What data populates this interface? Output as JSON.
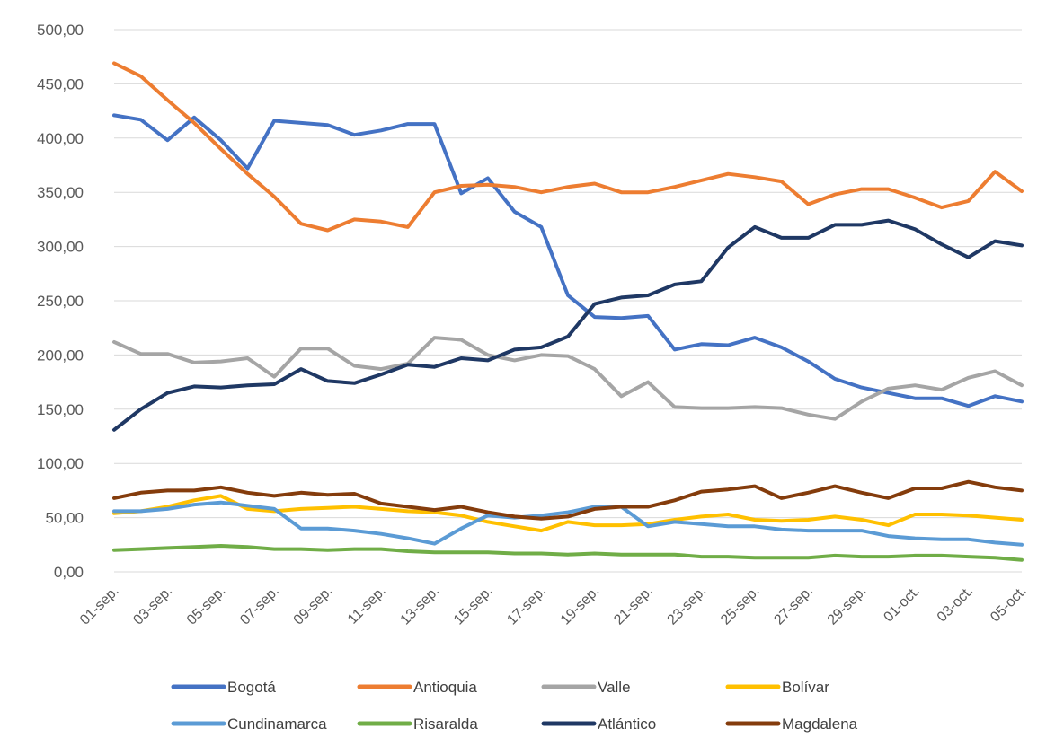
{
  "chart_data": {
    "type": "line",
    "title": "",
    "xlabel": "",
    "ylabel": "",
    "ylim": [
      0,
      500
    ],
    "y_ticks": [
      "0,00",
      "50,00",
      "100,00",
      "150,00",
      "200,00",
      "250,00",
      "300,00",
      "350,00",
      "400,00",
      "450,00",
      "500,00"
    ],
    "grid": "horizontal",
    "legend_position": "bottom",
    "x_tick_labels": [
      "01-sep.",
      "03-sep.",
      "05-sep.",
      "07-sep.",
      "09-sep.",
      "11-sep.",
      "13-sep.",
      "15-sep.",
      "17-sep.",
      "19-sep.",
      "21-sep.",
      "23-sep.",
      "25-sep.",
      "27-sep.",
      "29-sep.",
      "01-oct.",
      "03-oct.",
      "05-oct."
    ],
    "categories": [
      "01-sep.",
      "02-sep.",
      "03-sep.",
      "04-sep.",
      "05-sep.",
      "06-sep.",
      "07-sep.",
      "08-sep.",
      "09-sep.",
      "10-sep.",
      "11-sep.",
      "12-sep.",
      "13-sep.",
      "14-sep.",
      "15-sep.",
      "16-sep.",
      "17-sep.",
      "18-sep.",
      "19-sep.",
      "20-sep.",
      "21-sep.",
      "22-sep.",
      "23-sep.",
      "24-sep.",
      "25-sep.",
      "26-sep.",
      "27-sep.",
      "28-sep.",
      "29-sep.",
      "30-sep.",
      "01-oct.",
      "02-oct.",
      "03-oct.",
      "04-oct.",
      "05-oct."
    ],
    "series": [
      {
        "name": "Bogotá",
        "color": "#4472c4",
        "values": [
          421,
          417,
          398,
          419,
          398,
          372,
          416,
          414,
          412,
          403,
          407,
          413,
          413,
          349,
          363,
          332,
          318,
          255,
          235,
          234,
          236,
          205,
          210,
          209,
          216,
          207,
          194,
          178,
          170,
          165,
          160,
          160,
          153,
          162,
          157
        ]
      },
      {
        "name": "Antioquia",
        "color": "#ed7d31",
        "values": [
          469,
          457,
          435,
          414,
          390,
          367,
          346,
          321,
          315,
          325,
          323,
          318,
          350,
          356,
          357,
          355,
          350,
          355,
          358,
          350,
          350,
          355,
          361,
          367,
          364,
          360,
          339,
          348,
          353,
          353,
          345,
          336,
          342,
          369,
          351
        ]
      },
      {
        "name": "Valle",
        "color": "#a5a5a5",
        "values": [
          212,
          201,
          201,
          193,
          194,
          197,
          180,
          206,
          206,
          190,
          187,
          192,
          216,
          214,
          200,
          195,
          200,
          199,
          187,
          162,
          175,
          152,
          151,
          151,
          152,
          151,
          145,
          141,
          157,
          169,
          172,
          168,
          179,
          185,
          172
        ]
      },
      {
        "name": "Bolívar",
        "color": "#ffc000",
        "values": [
          54,
          56,
          60,
          66,
          70,
          58,
          56,
          58,
          59,
          60,
          58,
          56,
          55,
          52,
          46,
          42,
          38,
          46,
          43,
          43,
          44,
          48,
          51,
          53,
          48,
          47,
          48,
          51,
          48,
          43,
          53,
          53,
          52,
          50,
          48
        ]
      },
      {
        "name": "Cundinamarca",
        "color": "#5b9bd5",
        "values": [
          56,
          56,
          58,
          62,
          64,
          61,
          58,
          40,
          40,
          38,
          35,
          31,
          26,
          40,
          52,
          50,
          52,
          55,
          60,
          60,
          42,
          46,
          44,
          42,
          42,
          39,
          38,
          38,
          38,
          33,
          31,
          30,
          30,
          27,
          25
        ]
      },
      {
        "name": "Risaralda",
        "color": "#70ad47",
        "values": [
          20,
          21,
          22,
          23,
          24,
          23,
          21,
          21,
          20,
          21,
          21,
          19,
          18,
          18,
          18,
          17,
          17,
          16,
          17,
          16,
          16,
          16,
          14,
          14,
          13,
          13,
          13,
          15,
          14,
          14,
          15,
          15,
          14,
          13,
          11
        ]
      },
      {
        "name": "Atlántico",
        "color": "#1f3864",
        "values": [
          131,
          150,
          165,
          171,
          170,
          172,
          173,
          187,
          176,
          174,
          182,
          191,
          189,
          197,
          195,
          205,
          207,
          217,
          247,
          253,
          255,
          265,
          268,
          299,
          318,
          308,
          308,
          320,
          320,
          324,
          316,
          302,
          290,
          305,
          301
        ]
      },
      {
        "name": "Magdalena",
        "color": "#843c0c",
        "values": [
          68,
          73,
          75,
          75,
          78,
          73,
          70,
          73,
          71,
          72,
          63,
          60,
          57,
          60,
          55,
          51,
          49,
          51,
          58,
          60,
          60,
          66,
          74,
          76,
          79,
          68,
          73,
          79,
          73,
          68,
          77,
          77,
          83,
          78,
          75
        ]
      }
    ]
  }
}
